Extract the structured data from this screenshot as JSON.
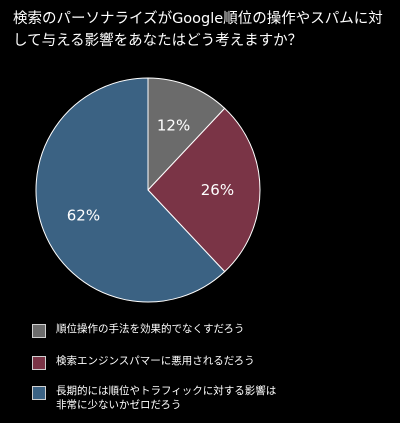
{
  "chart_data": {
    "type": "pie",
    "title": "検索のパーソナライズがGoogle順位の操作やスパムに対して与える影響をあなたはどう考えますか？",
    "categories": [
      "順位操作の手法を効果的でなくすだろう",
      "検索エンジンスパマーに悪用されるだろう",
      "長期的には順位やトラフィックに対する影響は\n非常に少ないかゼロだろう"
    ],
    "values": [
      12,
      26,
      62
    ],
    "value_labels": [
      "12%",
      "26%",
      "62%"
    ],
    "colors": [
      "#6b6b6b",
      "#7a3446",
      "#3b6283"
    ],
    "legend_position": "bottom",
    "start_angle_deg": 0,
    "direction": "clockwise"
  }
}
